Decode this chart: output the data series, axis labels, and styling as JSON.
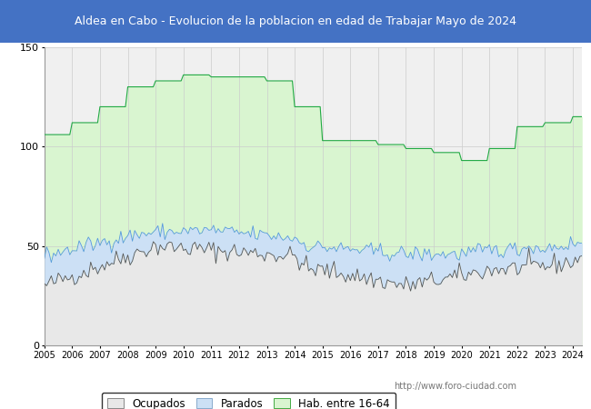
{
  "title": "Aldea en Cabo - Evolucion de la poblacion en edad de Trabajar Mayo de 2024",
  "title_bg": "#4472c4",
  "title_color": "white",
  "ylim": [
    0,
    150
  ],
  "yticks": [
    0,
    50,
    100,
    150
  ],
  "year_labels": [
    "2005",
    "2006",
    "2007",
    "2008",
    "2009",
    "2010",
    "2011",
    "2012",
    "2013",
    "2014",
    "2015",
    "2016",
    "2017",
    "2018",
    "2019",
    "2020",
    "2021",
    "2022",
    "2023",
    "2024"
  ],
  "hab_annual": [
    106,
    112,
    120,
    130,
    133,
    136,
    135,
    135,
    133,
    120,
    103,
    103,
    101,
    99,
    97,
    93,
    99,
    110,
    112,
    115
  ],
  "watermark": "http://www.foro-ciudad.com",
  "color_hab_fill": "#d9f5d0",
  "color_hab_line": "#22aa44",
  "color_ocup_fill": "#e8e8e8",
  "color_ocup_line": "#555555",
  "color_par_fill": "#cce0f5",
  "color_par_line": "#5599dd"
}
